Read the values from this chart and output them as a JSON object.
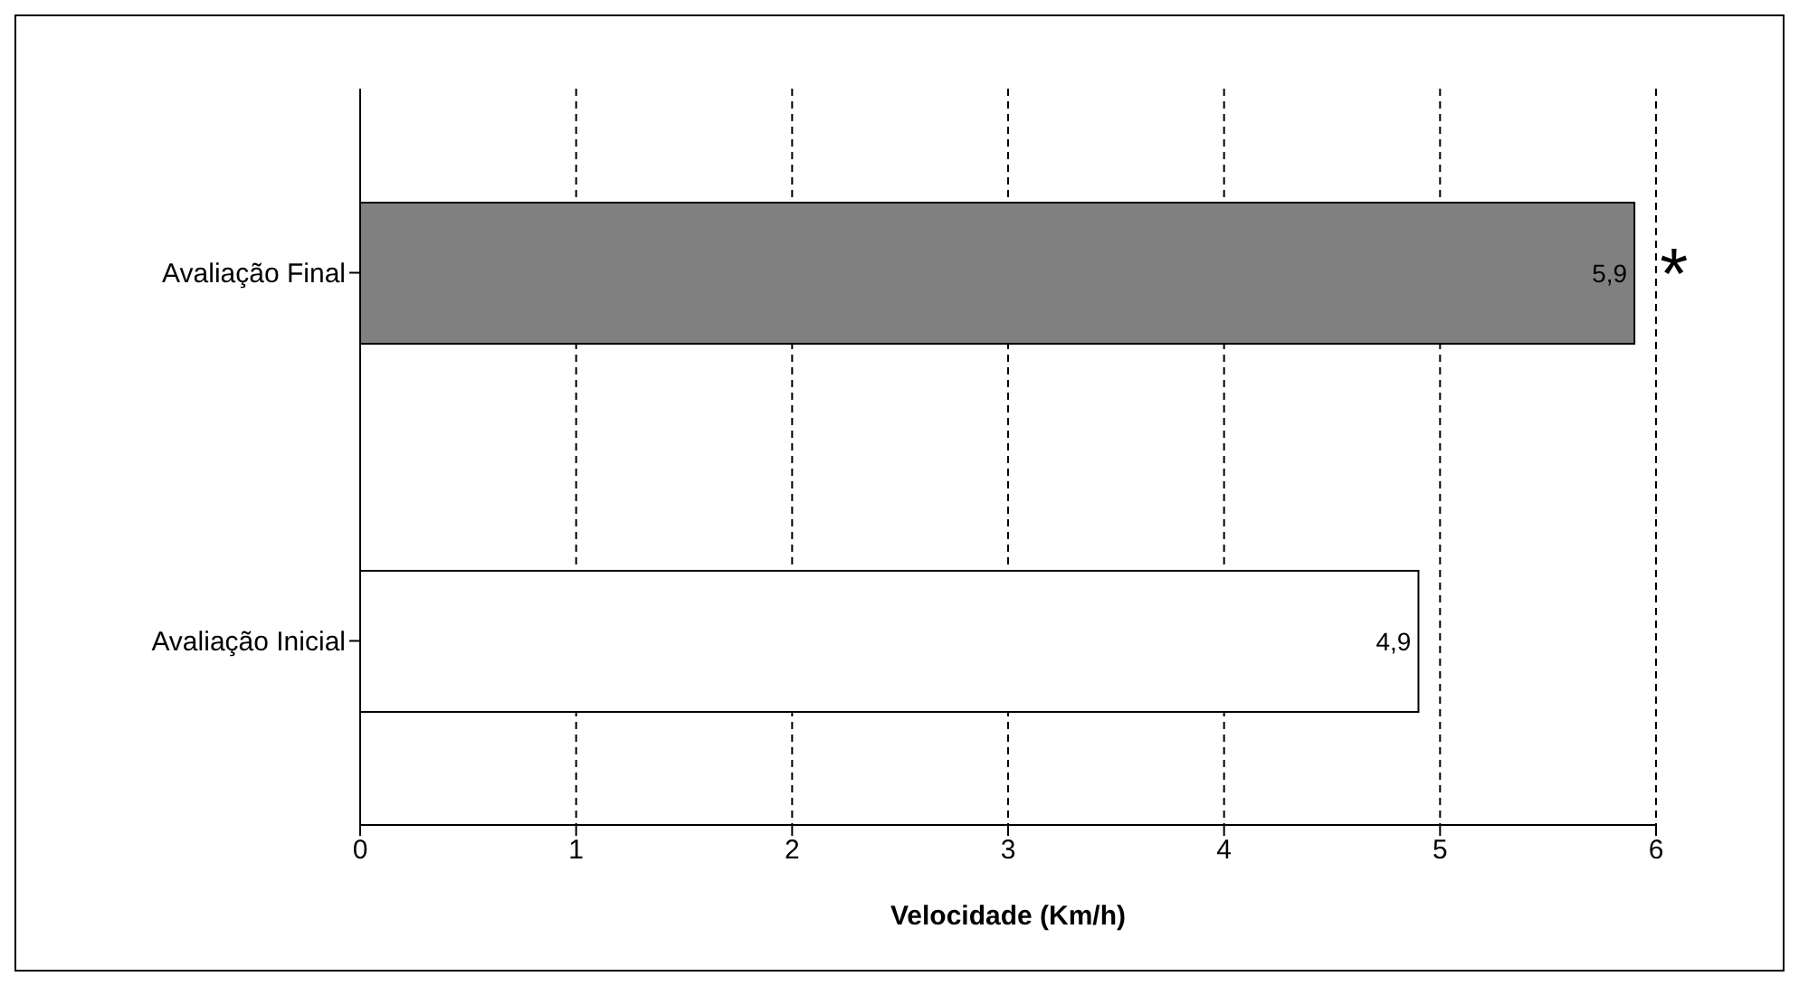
{
  "chart_data": {
    "type": "bar",
    "orientation": "horizontal",
    "categories": [
      "Avaliação Final",
      "Avaliação Inicial"
    ],
    "values": [
      5.9,
      4.9
    ],
    "colors": [
      "#808080",
      "#ffffff"
    ],
    "value_labels": [
      "5,9",
      "4,9"
    ],
    "xlim": [
      0,
      6
    ],
    "xticks": [
      0,
      1,
      2,
      3,
      4,
      5,
      6
    ],
    "xlabel": "Velocidade (Km/h)",
    "grid": "x",
    "annotations": [
      {
        "text": "*",
        "x": 5.9,
        "y": "Avaliação Final"
      }
    ]
  }
}
